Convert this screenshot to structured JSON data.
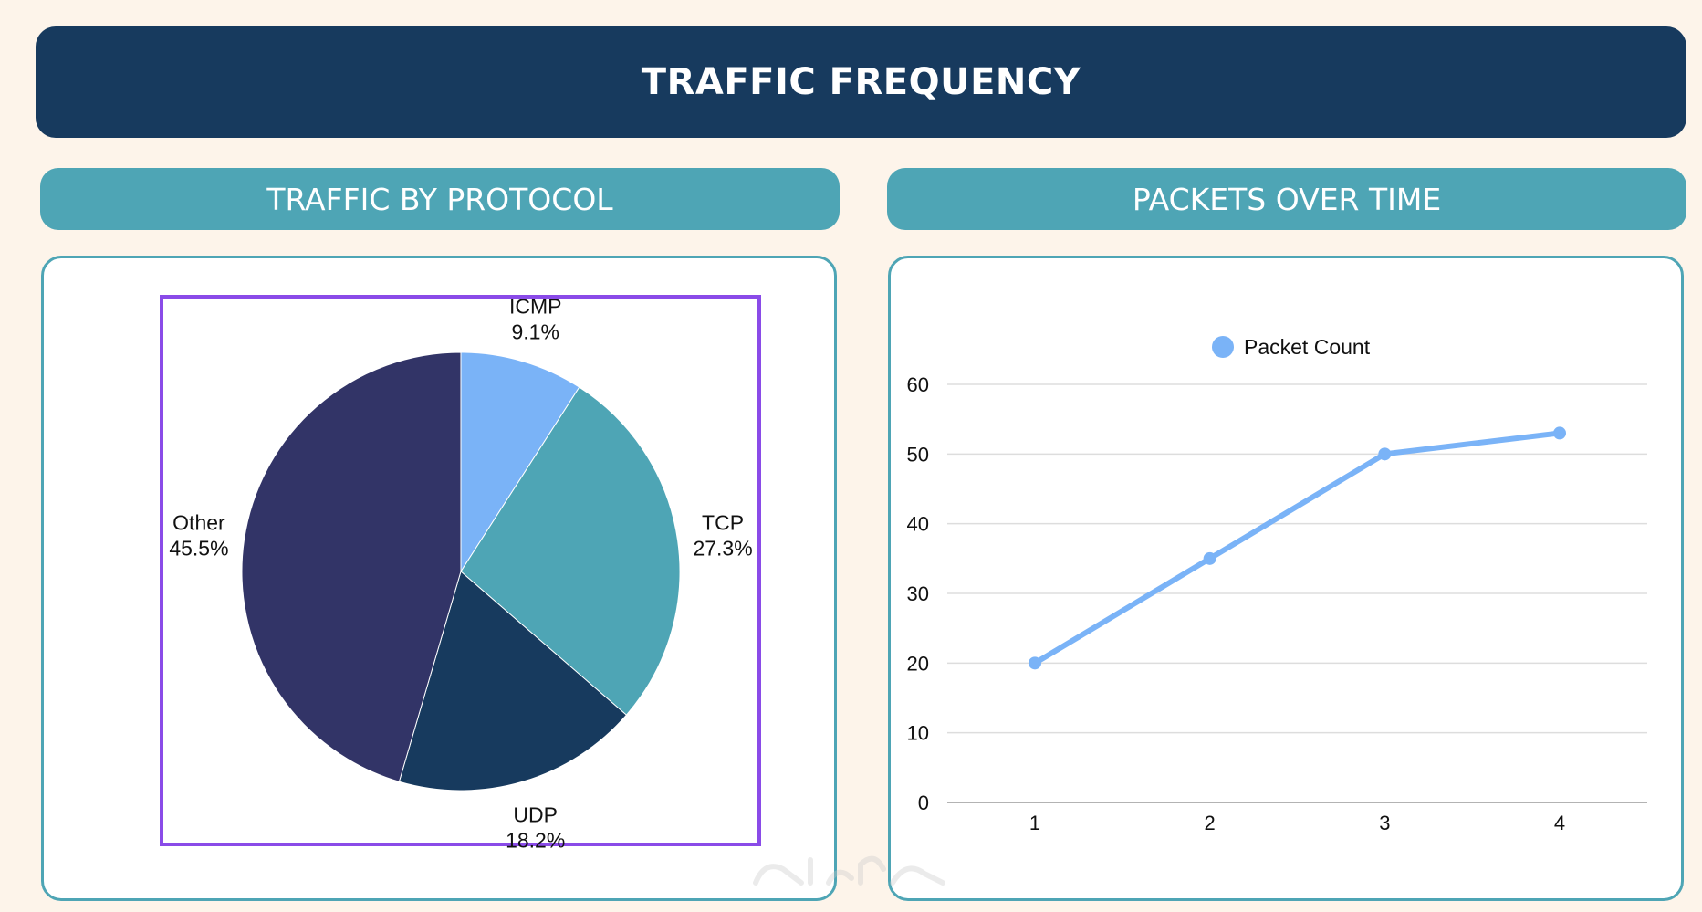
{
  "header": {
    "title": "TRAFFIC FREQUENCY"
  },
  "sections": {
    "left_title": "TRAFFIC BY PROTOCOL",
    "right_title": "PACKETS OVER TIME"
  },
  "colors": {
    "icmp": "#7ab3f7",
    "tcp": "#4ea5b5",
    "udp": "#173a5e",
    "other": "#323467",
    "line": "#7ab3f7",
    "highlight": "#8a4be8"
  },
  "chart_data": [
    {
      "type": "pie",
      "title": "",
      "slices": [
        {
          "label": "ICMP",
          "value": 9.1,
          "display": "9.1%"
        },
        {
          "label": "TCP",
          "value": 27.3,
          "display": "27.3%"
        },
        {
          "label": "UDP",
          "value": 18.2,
          "display": "18.2%"
        },
        {
          "label": "Other",
          "value": 45.5,
          "display": "45.5%"
        }
      ]
    },
    {
      "type": "line",
      "title": "",
      "legend": "top-center",
      "grid": true,
      "x": [
        1,
        2,
        3,
        4
      ],
      "x_tick_labels": [
        "1",
        "2",
        "3",
        "4"
      ],
      "y_tick_labels": [
        "0",
        "10",
        "20",
        "30",
        "40",
        "50",
        "60"
      ],
      "ylim": [
        0,
        60
      ],
      "series": [
        {
          "name": "Packet Count",
          "values": [
            20,
            35,
            50,
            53
          ]
        }
      ]
    }
  ]
}
